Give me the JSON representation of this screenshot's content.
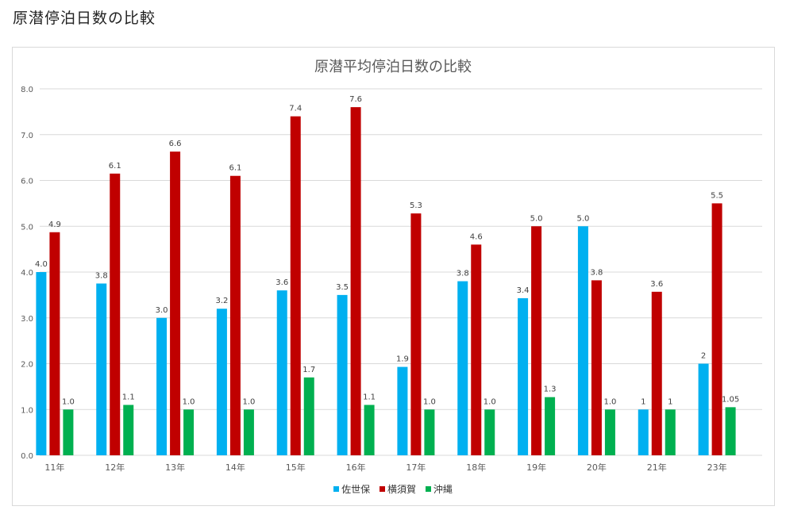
{
  "page": {
    "heading": "原潜停泊日数の比較"
  },
  "colors": {
    "佐世保": "#00b0f0",
    "横須賀": "#c00000",
    "沖縄": "#00b050",
    "grid": "#d9d9d9",
    "text": "#595959"
  },
  "chart_data": {
    "type": "bar",
    "title": "原潜平均停泊日数の比較",
    "xlabel": "",
    "ylabel": "",
    "ylim": [
      0,
      8
    ],
    "yticks": [
      "0.0",
      "1.0",
      "2.0",
      "3.0",
      "4.0",
      "5.0",
      "6.0",
      "7.0",
      "8.0"
    ],
    "grid": true,
    "legend_position": "bottom",
    "categories": [
      "11年",
      "12年",
      "13年",
      "14年",
      "15年",
      "16年",
      "17年",
      "18年",
      "19年",
      "20年",
      "21年",
      "23年"
    ],
    "series": [
      {
        "name": "佐世保",
        "values": [
          4.0,
          3.75,
          3.0,
          3.2,
          3.6,
          3.5,
          1.93,
          3.8,
          3.43,
          5.0,
          1,
          2
        ],
        "labels": [
          "4.0",
          "3.8",
          "3.0",
          "3.2",
          "3.6",
          "3.5",
          "1.9",
          "3.8",
          "3.4",
          "5.0",
          "1",
          "2"
        ]
      },
      {
        "name": "横須賀",
        "values": [
          4.87,
          6.15,
          6.63,
          6.1,
          7.4,
          7.6,
          5.28,
          4.6,
          5.0,
          3.82,
          3.57,
          5.5
        ],
        "labels": [
          "4.9",
          "6.1",
          "6.6",
          "6.1",
          "7.4",
          "7.6",
          "5.3",
          "4.6",
          "5.0",
          "3.8",
          "3.6",
          "5.5"
        ]
      },
      {
        "name": "沖縄",
        "values": [
          1.0,
          1.1,
          1.0,
          1.0,
          1.7,
          1.1,
          1.0,
          1.0,
          1.27,
          1.0,
          1,
          1.05
        ],
        "labels": [
          "1.0",
          "1.1",
          "1.0",
          "1.0",
          "1.7",
          "1.1",
          "1.0",
          "1.0",
          "1.3",
          "1.0",
          "1",
          "1.05"
        ]
      }
    ]
  }
}
